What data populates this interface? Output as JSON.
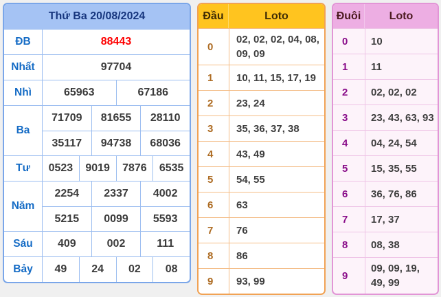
{
  "colors": {
    "page_bg": "#f0f0f0",
    "results_border": "#7aa6e9",
    "results_header_bg": "#a5c3f4",
    "results_header_text": "#17367e",
    "results_label_text": "#146bc5",
    "results_value_text": "#3b3b3b",
    "results_db_value": "#fe0000",
    "dau_border": "#f1a254",
    "dau_header_bg": "#ffc41f",
    "dau_digit_text": "#ad6b22",
    "duoi_border": "#e295d6",
    "duoi_header_bg": "#edaee3",
    "duoi_digit_text": "#890c89"
  },
  "results_table": {
    "title": "Thứ Ba 20/08/2024",
    "rows": [
      {
        "key": "db",
        "label": "ĐB",
        "highlight": true,
        "lines": [
          [
            "88443"
          ]
        ]
      },
      {
        "key": "nhat",
        "label": "Nhất",
        "highlight": false,
        "lines": [
          [
            "97704"
          ]
        ]
      },
      {
        "key": "nhi",
        "label": "Nhì",
        "highlight": false,
        "lines": [
          [
            "65963",
            "67186"
          ]
        ]
      },
      {
        "key": "ba",
        "label": "Ba",
        "highlight": false,
        "lines": [
          [
            "71709",
            "81655",
            "28110"
          ],
          [
            "35117",
            "94738",
            "68036"
          ]
        ]
      },
      {
        "key": "tu",
        "label": "Tư",
        "highlight": false,
        "lines": [
          [
            "0523",
            "9019",
            "7876",
            "6535"
          ]
        ]
      },
      {
        "key": "nam",
        "label": "Năm",
        "highlight": false,
        "lines": [
          [
            "2254",
            "2337",
            "4002"
          ],
          [
            "5215",
            "0099",
            "5593"
          ]
        ]
      },
      {
        "key": "sau",
        "label": "Sáu",
        "highlight": false,
        "lines": [
          [
            "409",
            "002",
            "111"
          ]
        ]
      },
      {
        "key": "bay",
        "label": "Bảy",
        "highlight": false,
        "lines": [
          [
            "49",
            "24",
            "02",
            "08"
          ]
        ]
      }
    ]
  },
  "dau_table": {
    "header": {
      "col1": "Đầu",
      "col2": "Loto"
    },
    "rows": [
      {
        "digit": "0",
        "loto": "02, 02, 02, 04, 08, 09, 09"
      },
      {
        "digit": "1",
        "loto": "10, 11, 15, 17, 19"
      },
      {
        "digit": "2",
        "loto": "23, 24"
      },
      {
        "digit": "3",
        "loto": "35, 36, 37, 38"
      },
      {
        "digit": "4",
        "loto": "43, 49"
      },
      {
        "digit": "5",
        "loto": "54, 55"
      },
      {
        "digit": "6",
        "loto": "63"
      },
      {
        "digit": "7",
        "loto": "76"
      },
      {
        "digit": "8",
        "loto": "86"
      },
      {
        "digit": "9",
        "loto": "93, 99"
      }
    ]
  },
  "duoi_table": {
    "header": {
      "col1": "Đuôi",
      "col2": "Loto"
    },
    "rows": [
      {
        "digit": "0",
        "loto": "10"
      },
      {
        "digit": "1",
        "loto": "11"
      },
      {
        "digit": "2",
        "loto": "02, 02, 02"
      },
      {
        "digit": "3",
        "loto": "23, 43, 63, 93"
      },
      {
        "digit": "4",
        "loto": "04, 24, 54"
      },
      {
        "digit": "5",
        "loto": "15, 35, 55"
      },
      {
        "digit": "6",
        "loto": "36, 76, 86"
      },
      {
        "digit": "7",
        "loto": "17, 37"
      },
      {
        "digit": "8",
        "loto": "08, 38"
      },
      {
        "digit": "9",
        "loto": "09, 09, 19, 49, 99"
      }
    ]
  }
}
